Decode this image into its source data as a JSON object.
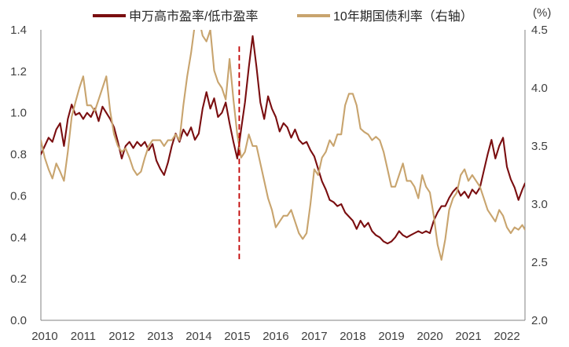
{
  "chart_data": {
    "type": "line",
    "legend_position": "top",
    "grid": false,
    "y2label": "(%)",
    "xlim": [
      2009.9,
      2022.47
    ],
    "ylim": [
      0,
      1.4
    ],
    "y2lim": [
      2.0,
      4.5
    ],
    "x_tick_labels": [
      "2010",
      "2011",
      "2012",
      "2013",
      "2014",
      "2015",
      "2016",
      "2017",
      "2018",
      "2019",
      "2020",
      "2021",
      "2022"
    ],
    "y_tick_labels": [
      "0.0",
      "0.2",
      "0.4",
      "0.6",
      "0.8",
      "1.0",
      "1.2",
      "1.4"
    ],
    "y2_tick_labels": [
      "2.0",
      "2.5",
      "3.0",
      "3.5",
      "4.0",
      "4.5"
    ],
    "x": [
      2009.9,
      2010.0,
      2010.1,
      2010.2,
      2010.3,
      2010.4,
      2010.5,
      2010.6,
      2010.7,
      2010.8,
      2010.9,
      2011.0,
      2011.1,
      2011.2,
      2011.3,
      2011.4,
      2011.5,
      2011.6,
      2011.7,
      2011.8,
      2011.9,
      2012.0,
      2012.1,
      2012.2,
      2012.3,
      2012.4,
      2012.5,
      2012.6,
      2012.7,
      2012.8,
      2012.9,
      2013.0,
      2013.1,
      2013.2,
      2013.3,
      2013.4,
      2013.5,
      2013.6,
      2013.7,
      2013.8,
      2013.9,
      2014.0,
      2014.1,
      2014.2,
      2014.3,
      2014.4,
      2014.5,
      2014.6,
      2014.7,
      2014.8,
      2014.9,
      2015.0,
      2015.1,
      2015.2,
      2015.3,
      2015.4,
      2015.5,
      2015.6,
      2015.7,
      2015.8,
      2015.9,
      2016.0,
      2016.1,
      2016.2,
      2016.3,
      2016.4,
      2016.5,
      2016.6,
      2016.7,
      2016.8,
      2016.9,
      2017.0,
      2017.1,
      2017.2,
      2017.3,
      2017.4,
      2017.5,
      2017.6,
      2017.7,
      2017.8,
      2017.9,
      2018.0,
      2018.1,
      2018.2,
      2018.3,
      2018.4,
      2018.5,
      2018.6,
      2018.7,
      2018.8,
      2018.9,
      2019.0,
      2019.1,
      2019.2,
      2019.3,
      2019.4,
      2019.5,
      2019.6,
      2019.7,
      2019.8,
      2019.9,
      2020.0,
      2020.1,
      2020.2,
      2020.3,
      2020.4,
      2020.5,
      2020.6,
      2020.7,
      2020.8,
      2020.9,
      2021.0,
      2021.1,
      2021.2,
      2021.3,
      2021.4,
      2021.5,
      2021.6,
      2021.7,
      2021.8,
      2021.9,
      2022.0,
      2022.1,
      2022.2,
      2022.3,
      2022.4,
      2022.47
    ],
    "series": [
      {
        "name": "申万高市盈率/低市盈率",
        "y_axis": "left",
        "color": "#7A0E10",
        "y": [
          0.8,
          0.84,
          0.88,
          0.86,
          0.92,
          0.95,
          0.84,
          0.97,
          1.04,
          0.99,
          1.0,
          0.97,
          1.0,
          0.98,
          1.02,
          0.96,
          1.03,
          1.0,
          0.97,
          0.93,
          0.86,
          0.78,
          0.84,
          0.86,
          0.83,
          0.86,
          0.84,
          0.86,
          0.82,
          0.85,
          0.77,
          0.73,
          0.7,
          0.76,
          0.84,
          0.9,
          0.86,
          0.92,
          0.89,
          0.93,
          0.87,
          0.9,
          1.02,
          1.1,
          1.02,
          1.07,
          0.98,
          1.0,
          1.05,
          0.95,
          0.86,
          0.78,
          0.92,
          1.05,
          1.22,
          1.37,
          1.22,
          1.05,
          0.97,
          1.08,
          1.02,
          0.98,
          0.91,
          0.95,
          0.93,
          0.88,
          0.92,
          0.87,
          0.85,
          0.86,
          0.82,
          0.79,
          0.73,
          0.67,
          0.63,
          0.58,
          0.57,
          0.55,
          0.56,
          0.52,
          0.5,
          0.48,
          0.44,
          0.48,
          0.45,
          0.47,
          0.43,
          0.41,
          0.4,
          0.38,
          0.37,
          0.38,
          0.4,
          0.43,
          0.41,
          0.4,
          0.41,
          0.42,
          0.43,
          0.42,
          0.43,
          0.42,
          0.48,
          0.52,
          0.55,
          0.55,
          0.59,
          0.62,
          0.64,
          0.6,
          0.62,
          0.59,
          0.63,
          0.61,
          0.64,
          0.72,
          0.8,
          0.87,
          0.78,
          0.84,
          0.88,
          0.74,
          0.68,
          0.64,
          0.58,
          0.63,
          0.66
        ]
      },
      {
        "name": "10年期国债利率（右轴）",
        "y_axis": "right",
        "color": "#C8A46E",
        "y": [
          3.55,
          3.4,
          3.3,
          3.22,
          3.35,
          3.28,
          3.2,
          3.45,
          3.75,
          3.88,
          4.0,
          4.1,
          3.85,
          3.85,
          3.8,
          3.9,
          4.0,
          4.1,
          3.8,
          3.6,
          3.5,
          3.45,
          3.48,
          3.4,
          3.3,
          3.25,
          3.28,
          3.4,
          3.5,
          3.55,
          3.55,
          3.55,
          3.5,
          3.55,
          3.55,
          3.6,
          3.55,
          3.85,
          4.1,
          4.3,
          4.55,
          4.6,
          4.45,
          4.4,
          4.5,
          4.15,
          4.05,
          4.0,
          3.9,
          4.25,
          3.9,
          3.6,
          3.4,
          3.45,
          3.6,
          3.5,
          3.5,
          3.35,
          3.2,
          3.05,
          2.95,
          2.8,
          2.85,
          2.9,
          2.9,
          2.95,
          2.85,
          2.75,
          2.7,
          2.75,
          3.0,
          3.3,
          3.25,
          3.4,
          3.45,
          3.55,
          3.5,
          3.6,
          3.6,
          3.85,
          3.95,
          3.95,
          3.85,
          3.65,
          3.62,
          3.6,
          3.55,
          3.58,
          3.55,
          3.45,
          3.3,
          3.15,
          3.15,
          3.25,
          3.35,
          3.2,
          3.2,
          3.15,
          3.05,
          3.25,
          3.15,
          3.1,
          2.9,
          2.65,
          2.52,
          2.7,
          2.95,
          3.05,
          3.1,
          3.25,
          3.3,
          3.2,
          3.25,
          3.2,
          3.15,
          3.05,
          2.95,
          2.9,
          2.85,
          2.95,
          2.9,
          2.8,
          2.75,
          2.8,
          2.78,
          2.82,
          2.78
        ]
      }
    ],
    "annotations": [
      {
        "type": "vertical-line",
        "x": 2015.05,
        "y_axis": "left",
        "y_range": [
          0.28,
          1.32
        ],
        "line_style": "dashed",
        "color": "#C00000"
      }
    ]
  }
}
